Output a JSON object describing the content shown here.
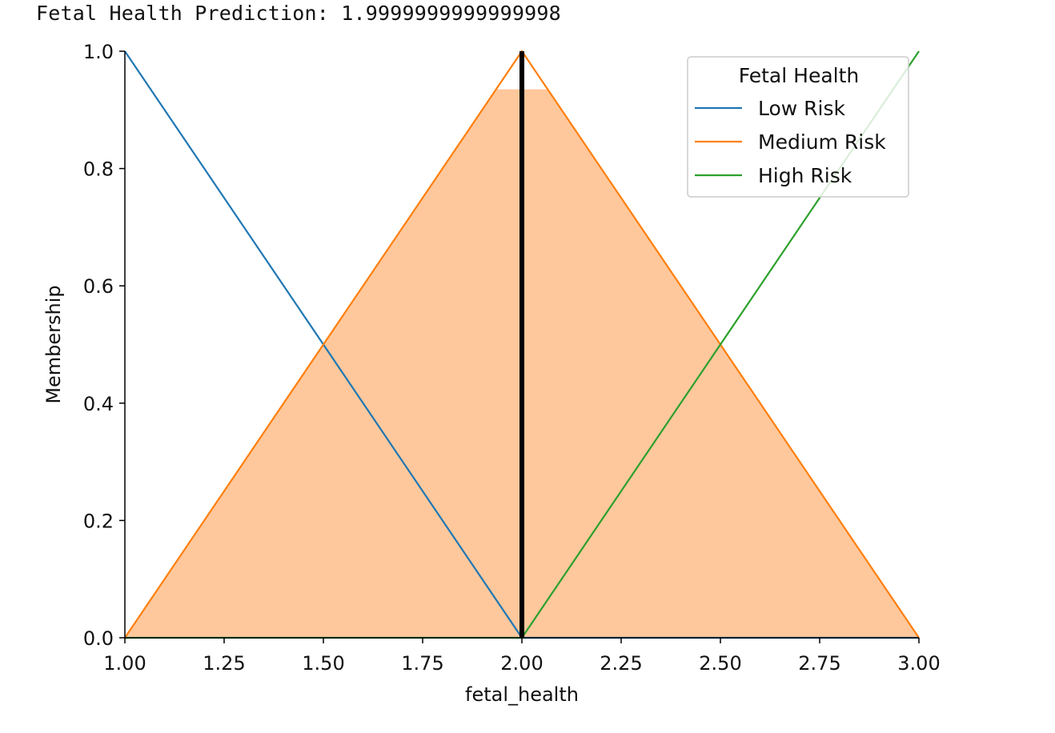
{
  "output": {
    "label": "Fetal Health Prediction:",
    "value": "1.9999999999999998"
  },
  "colors": {
    "low": "#1f77b4",
    "medium": "#ff7f0e",
    "high": "#2ca02c",
    "fill": "#ffc89c",
    "defuzz_line": "#000000"
  },
  "chart_data": {
    "type": "line",
    "title": "",
    "xlabel": "fetal_health",
    "ylabel": "Membership",
    "xlim": [
      1.0,
      3.0
    ],
    "ylim": [
      0.0,
      1.0
    ],
    "x_ticks": [
      "1.00",
      "1.25",
      "1.50",
      "1.75",
      "2.00",
      "2.25",
      "2.50",
      "2.75",
      "3.00"
    ],
    "y_ticks": [
      "0.0",
      "0.2",
      "0.4",
      "0.6",
      "0.8",
      "1.0"
    ],
    "grid": false,
    "legend": {
      "title": "Fetal Health",
      "placement": "top-right"
    },
    "series": [
      {
        "name": "Low Risk",
        "color_key": "low",
        "x": [
          1.0,
          2.0,
          3.0
        ],
        "y": [
          1.0,
          0.0,
          0.0
        ]
      },
      {
        "name": "Medium Risk",
        "color_key": "medium",
        "x": [
          1.0,
          2.0,
          3.0
        ],
        "y": [
          0.0,
          1.0,
          0.0
        ]
      },
      {
        "name": "High Risk",
        "color_key": "high",
        "x": [
          1.0,
          2.0,
          3.0
        ],
        "y": [
          0.0,
          0.0,
          1.0
        ]
      }
    ],
    "activation": {
      "series": "Medium Risk",
      "clip_level": 0.935,
      "x": [
        1.0,
        1.935,
        2.065,
        3.0
      ],
      "y": [
        0.0,
        0.935,
        0.935,
        0.0
      ]
    },
    "defuzzified_x": 2.0
  }
}
